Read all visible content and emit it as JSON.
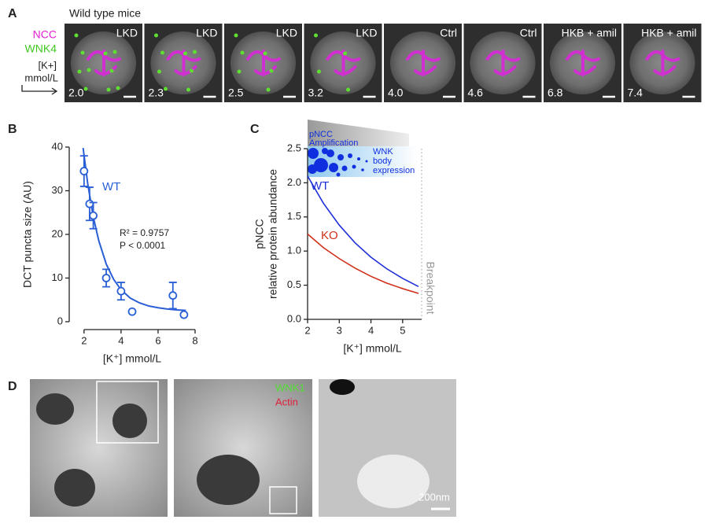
{
  "panel_a": {
    "label": "A",
    "title": "Wild type mice",
    "legend": [
      "NCC",
      "WNK4"
    ],
    "k_label": [
      "[K+]",
      "mmol/L"
    ],
    "tiles": [
      {
        "condition": "LKD",
        "k": "2.0"
      },
      {
        "condition": "LKD",
        "k": "2.3"
      },
      {
        "condition": "LKD",
        "k": "2.5"
      },
      {
        "condition": "LKD",
        "k": "3.2"
      },
      {
        "condition": "Ctrl",
        "k": "4.0"
      },
      {
        "condition": "Ctrl",
        "k": "4.6"
      },
      {
        "condition": "HKB + amil",
        "k": "6.8"
      },
      {
        "condition": "HKB + amil",
        "k": "7.4"
      }
    ]
  },
  "chart_data": [
    {
      "type": "scatter",
      "label": "B",
      "xlabel": "[K⁺] mmol/L",
      "ylabel": "DCT puncta size (AU)",
      "xlim": [
        1.2,
        8
      ],
      "ylim": [
        0,
        40
      ],
      "xticks": [
        2,
        4,
        6,
        8
      ],
      "yticks": [
        0,
        10,
        20,
        30,
        40
      ],
      "annotations": [
        "R² = 0.9757",
        "P < 0.0001"
      ],
      "series": [
        {
          "name": "WT",
          "color": "#2a5fd6",
          "x": [
            2.0,
            2.3,
            2.5,
            3.2,
            4.0,
            4.6,
            6.8,
            7.4
          ],
          "values": [
            34.5,
            27,
            24.3,
            10,
            7,
            2.3,
            6,
            1.6
          ],
          "errors": [
            3.5,
            3.8,
            3,
            2,
            2,
            0,
            3,
            0
          ],
          "fit_x": [
            1.95,
            2.2,
            2.5,
            2.8,
            3.2,
            3.6,
            4,
            4.5,
            5,
            5.5,
            6,
            6.5,
            7,
            7.5
          ],
          "fit_values": [
            39.8,
            31.6,
            24.0,
            18.5,
            13.2,
            9.7,
            7.3,
            5.4,
            4.3,
            3.6,
            3.2,
            2.9,
            2.7,
            2.6
          ]
        }
      ]
    },
    {
      "type": "line",
      "label": "C",
      "xlabel": "[K⁺] mmol/L",
      "ylabel": [
        "pNCC",
        "relative protein abundance"
      ],
      "xlim": [
        2,
        5.6
      ],
      "ylim": [
        0,
        2.5
      ],
      "xticks": [
        2,
        3,
        4,
        5
      ],
      "yticks": [
        {
          "value": 0,
          "label": "0.0"
        },
        0.5,
        {
          "value": 1,
          "label": "1.0"
        },
        1.5,
        {
          "value": 2,
          "label": "2.0"
        },
        2.5
      ],
      "x": [
        2,
        2.5,
        3,
        3.5,
        4,
        4.5,
        5,
        5.5
      ],
      "breakpoint": 5.6,
      "breakpoint_label": "Breakpoint",
      "annotations": [
        [
          "pNCC",
          "Amplification"
        ],
        [
          "WNK",
          "body",
          "expression"
        ]
      ],
      "series": [
        {
          "name": "WT",
          "color": "#1f2fd8",
          "values": [
            2.1,
            1.7,
            1.38,
            1.12,
            0.91,
            0.74,
            0.6,
            0.48
          ]
        },
        {
          "name": "KO",
          "color": "#d0301a",
          "values": [
            1.25,
            1.05,
            0.89,
            0.75,
            0.63,
            0.53,
            0.45,
            0.38
          ]
        }
      ]
    }
  ],
  "panel_d": {
    "label": "D",
    "legend": [
      "WNK1",
      "Actin"
    ],
    "scale_bar": "200nm"
  }
}
